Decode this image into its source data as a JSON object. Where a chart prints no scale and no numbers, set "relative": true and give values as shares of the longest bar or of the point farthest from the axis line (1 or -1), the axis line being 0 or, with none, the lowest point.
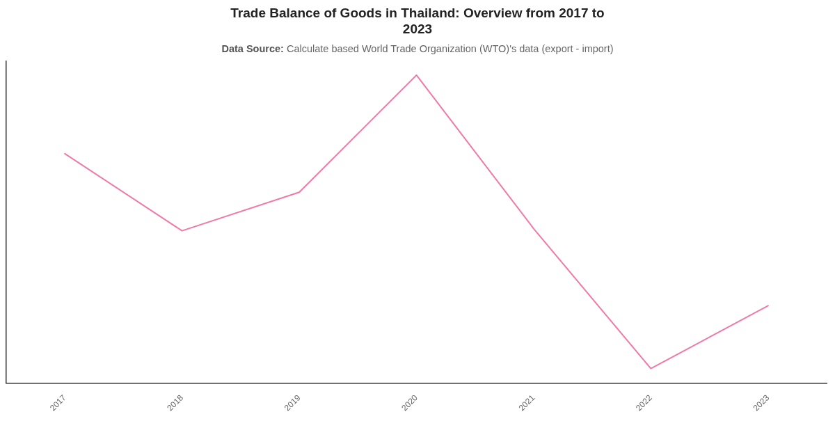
{
  "chart_data": {
    "type": "line",
    "title": "Trade Balance of Goods in Thailand: Overview from 2017 to 2023",
    "subtitle": "Data Source: Calculate based World Trade Organization (WTO)'s data (export - import)",
    "categories": [
      "2017",
      "2018",
      "2019",
      "2020",
      "2021",
      "2022",
      "2023"
    ],
    "values": [
      0.745,
      0.495,
      0.62,
      1,
      0.502,
      0.048,
      0.252
    ],
    "color": "#ef7aa8",
    "relative": true
  }
}
